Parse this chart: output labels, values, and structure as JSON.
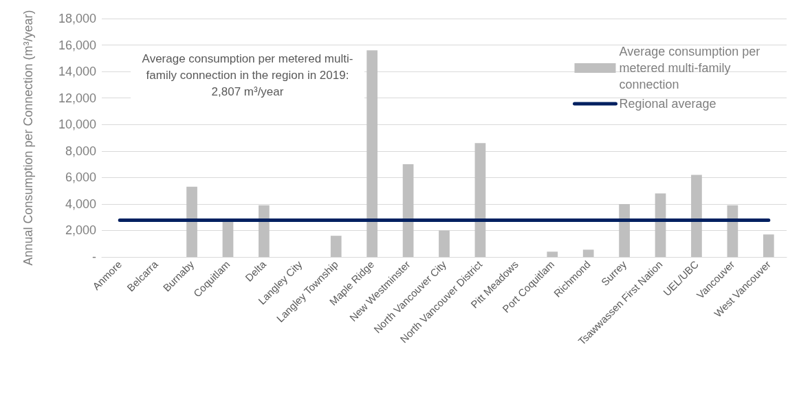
{
  "chart_data": {
    "type": "bar",
    "ylabel": "Annual Consumption per Connection (m³/year)",
    "categories": [
      "Anmore",
      "Belcarra",
      "Burnaby",
      "Coquitlam",
      "Delta",
      "Langley City",
      "Langley Township",
      "Maple Ridge",
      "New Westminster",
      "North Vancouver City",
      "North Vancouver District",
      "Pitt Meadows",
      "Port Coquitlam",
      "Richmond",
      "Surrey",
      "Tsawwassen First Nation",
      "UEL/UBC",
      "Vancouver",
      "West Vancouver"
    ],
    "series": [
      {
        "name": "Average consumption per metered multi-family connection",
        "color": "#bfbfbf",
        "values": [
          null,
          null,
          5300,
          2700,
          3900,
          null,
          1600,
          15600,
          7000,
          2000,
          8600,
          null,
          400,
          550,
          4000,
          4800,
          6200,
          3900,
          1700
        ]
      }
    ],
    "ref_lines": [
      {
        "axis": "y",
        "value": 2807,
        "label": "Regional average",
        "color": "#002060"
      }
    ],
    "annotations": [
      "Average consumption per metered multi-family connection in the region in 2019: 2,807 m³/year"
    ],
    "ylim": [
      0,
      18000
    ],
    "yticks": [
      {
        "value": 0,
        "label": "-"
      },
      {
        "value": 2000,
        "label": "2,000"
      },
      {
        "value": 4000,
        "label": "4,000"
      },
      {
        "value": 6000,
        "label": "6,000"
      },
      {
        "value": 8000,
        "label": "8,000"
      },
      {
        "value": 10000,
        "label": "10,000"
      },
      {
        "value": 12000,
        "label": "12,000"
      },
      {
        "value": 14000,
        "label": "14,000"
      },
      {
        "value": 16000,
        "label": "16,000"
      },
      {
        "value": 18000,
        "label": "18,000"
      }
    ],
    "grid": "y",
    "legend": "top right"
  }
}
